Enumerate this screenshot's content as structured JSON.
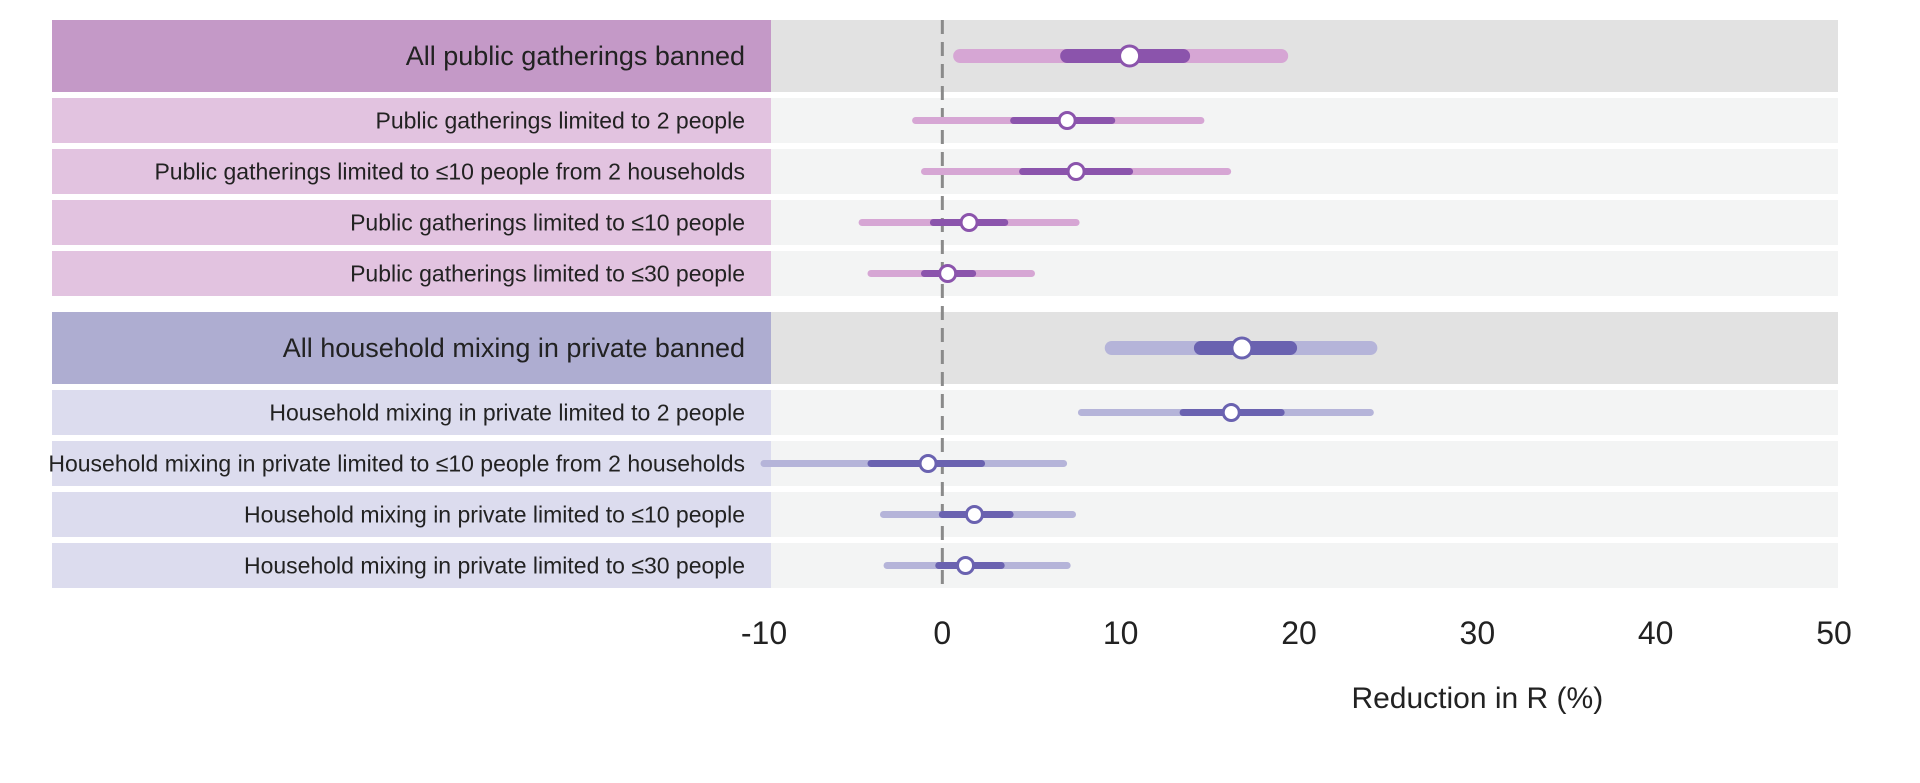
{
  "chart_data": {
    "type": "forest",
    "title": "",
    "xlabel": "Reduction in R (%)",
    "ylabel": "",
    "xlim": [
      -10,
      50
    ],
    "xticks": [
      -10,
      0,
      10,
      20,
      30,
      40,
      50
    ],
    "reference_line": 0,
    "groups": [
      {
        "name": "public",
        "colors": {
          "main_label_bg": "#c499c7",
          "sub_label_bg": "#e2c3e0",
          "ci_wide": "#d6a6d4",
          "ci_narrow": "#8b54ac",
          "point_stroke": "#8b54ac"
        },
        "rows": [
          {
            "label": "All public gatherings banned",
            "main": true,
            "estimate": 10.5,
            "ci50": [
              7.0,
              13.5
            ],
            "ci95": [
              1.0,
              19.0
            ]
          },
          {
            "label": "Public gatherings limited to 2 people",
            "main": false,
            "estimate": 7.0,
            "ci50": [
              4.0,
              9.5
            ],
            "ci95": [
              -1.5,
              14.5
            ]
          },
          {
            "label": "Public gatherings limited to ≤10 people from 2 households",
            "main": false,
            "estimate": 7.5,
            "ci50": [
              4.5,
              10.5
            ],
            "ci95": [
              -1.0,
              16.0
            ]
          },
          {
            "label": "Public gatherings limited to ≤10 people",
            "main": false,
            "estimate": 1.5,
            "ci50": [
              -0.5,
              3.5
            ],
            "ci95": [
              -4.5,
              7.5
            ]
          },
          {
            "label": "Public gatherings limited to ≤30 people",
            "main": false,
            "estimate": 0.3,
            "ci50": [
              -1.0,
              1.7
            ],
            "ci95": [
              -4.0,
              5.0
            ]
          }
        ]
      },
      {
        "name": "household",
        "colors": {
          "main_label_bg": "#aeadd1",
          "sub_label_bg": "#dcdcee",
          "ci_wide": "#b5b4d9",
          "ci_narrow": "#6a62b0",
          "point_stroke": "#6a62b0"
        },
        "rows": [
          {
            "label": "All household mixing in private banned",
            "main": true,
            "estimate": 16.8,
            "ci50": [
              14.5,
              19.5
            ],
            "ci95": [
              9.5,
              24.0
            ]
          },
          {
            "label": "Household mixing in private limited to 2 people",
            "main": false,
            "estimate": 16.2,
            "ci50": [
              13.5,
              19.0
            ],
            "ci95": [
              7.8,
              24.0
            ]
          },
          {
            "label": "Household mixing in private limited to ≤10 people from 2 households",
            "main": false,
            "estimate": -0.8,
            "ci50": [
              -4.0,
              2.2
            ],
            "ci95": [
              -10.0,
              6.8
            ]
          },
          {
            "label": "Household mixing in private limited to ≤10 people",
            "main": false,
            "estimate": 1.8,
            "ci50": [
              0.0,
              3.8
            ],
            "ci95": [
              -3.3,
              7.3
            ]
          },
          {
            "label": "Household mixing in private limited to ≤30 people",
            "main": false,
            "estimate": 1.3,
            "ci50": [
              -0.2,
              3.3
            ],
            "ci95": [
              -3.1,
              7.0
            ]
          }
        ]
      }
    ],
    "colors": {
      "plot_bg_main": "#e2e2e2",
      "plot_bg_sub": "#f3f4f4",
      "reference_line": "#8a8a8a",
      "text": "#222222"
    }
  }
}
